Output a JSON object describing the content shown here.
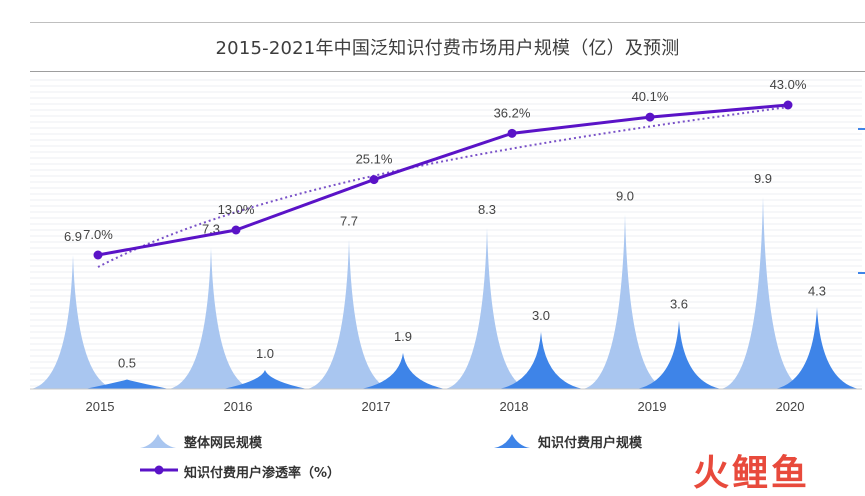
{
  "title": "2015-2021年中国泛知识付费市场用户规模（亿）及预测",
  "chart_data": {
    "type": "bar+line",
    "categories": [
      "2015",
      "2016",
      "2017",
      "2018",
      "2019",
      "2020"
    ],
    "series": [
      {
        "name": "整体网民规模",
        "values": [
          6.9,
          7.3,
          7.7,
          8.3,
          9.0,
          9.9
        ],
        "labels": [
          "6.9",
          "7.3",
          "7.7",
          "8.3",
          "9.0",
          "9.9"
        ],
        "color": "#a9c6f0"
      },
      {
        "name": "知识付费用户规模",
        "values": [
          0.5,
          1.0,
          1.9,
          3.0,
          3.6,
          4.3
        ],
        "labels": [
          "0.5",
          "1.0",
          "1.9",
          "3.0",
          "3.6",
          "4.3"
        ],
        "color": "#3e84e8"
      },
      {
        "name": "知识付费用户渗透率（%）",
        "values": [
          7.0,
          13.0,
          25.1,
          36.2,
          40.1,
          43.0
        ],
        "labels": [
          "7.0%",
          "13.0%",
          "25.1%",
          "36.2%",
          "40.1%",
          "43.0%"
        ],
        "color": "#5a13c7"
      }
    ],
    "trendline": {
      "color": "#7a52c8",
      "style": "dotted"
    }
  },
  "legend": {
    "item1": "整体网民规模",
    "item2": "知识付费用户规模",
    "item3": "知识付费用户渗透率（%）"
  },
  "watermark": "火鲤鱼"
}
